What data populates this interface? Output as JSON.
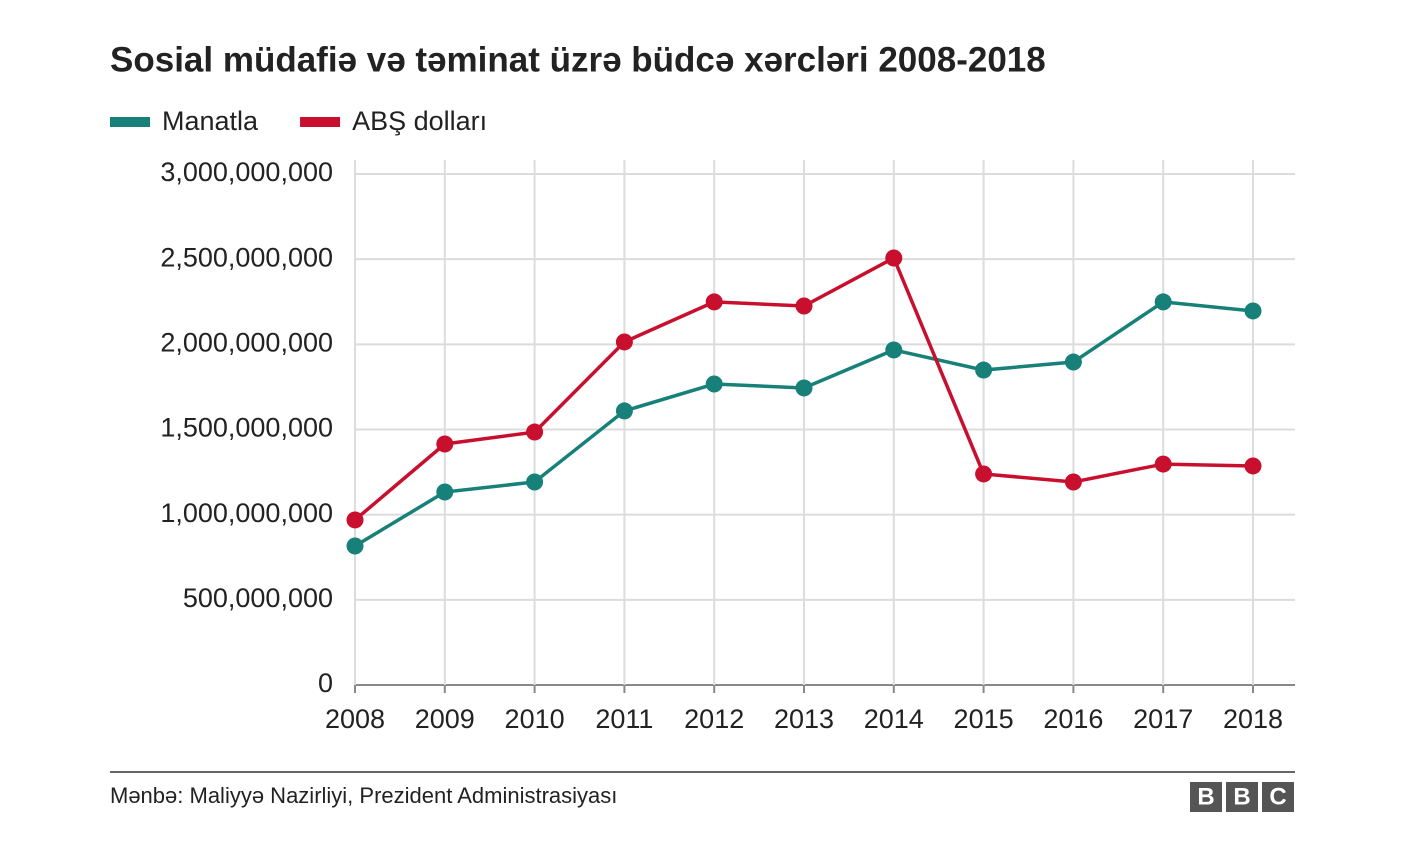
{
  "chart_data": {
    "type": "line",
    "title": "Sosial müdafiə və təminat üzrə büdcə xərcləri 2008-2018",
    "categories": [
      "2008",
      "2009",
      "2010",
      "2011",
      "2012",
      "2013",
      "2014",
      "2015",
      "2016",
      "2017",
      "2018"
    ],
    "series": [
      {
        "name": "Manatla",
        "color": "#168079",
        "values": [
          816000000,
          1133000000,
          1192000000,
          1609000000,
          1767000000,
          1744000000,
          1967000000,
          1849000000,
          1896000000,
          2249000000,
          2196000000
        ]
      },
      {
        "name": "ABŞ dolları",
        "color": "#c8102e",
        "values": [
          969000000,
          1415000000,
          1485000000,
          2014000000,
          2249000000,
          2225000000,
          2507000000,
          1239000000,
          1192000000,
          1297000000,
          1286000000
        ]
      }
    ],
    "ylim": [
      0,
      3000000000
    ],
    "yticks": [
      0,
      {
        "value": 500000000,
        "label": "500,000,000"
      },
      {
        "value": 1000000000,
        "label": "1,000,000,000"
      },
      {
        "value": 1500000000,
        "label": "1,500,000,000"
      },
      {
        "value": 2000000000,
        "label": "2,000,000,000"
      },
      {
        "value": 2500000000,
        "label": "2,500,000,000"
      },
      {
        "value": 3000000000,
        "label": "3,000,000,000"
      }
    ],
    "grid": true,
    "source": "Mənbə: Maliyyə Nazirliyi, Prezident Administrasiyası",
    "logo": [
      "B",
      "B",
      "C"
    ]
  }
}
